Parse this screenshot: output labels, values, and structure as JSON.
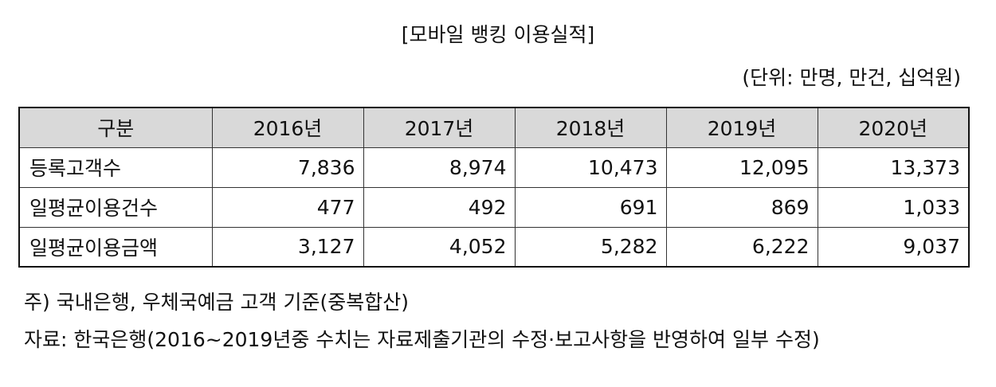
{
  "title": "[모바일 뱅킹 이용실적]",
  "unit": "(단위: 만명, 만건, 십억원)",
  "table": {
    "headers": [
      "구분",
      "2016년",
      "2017년",
      "2018년",
      "2019년",
      "2020년"
    ],
    "rows": [
      {
        "label": "등록고객수",
        "values": [
          "7,836",
          "8,974",
          "10,473",
          "12,095",
          "13,373"
        ]
      },
      {
        "label": "일평균이용건수",
        "values": [
          "477",
          "492",
          "691",
          "869",
          "1,033"
        ]
      },
      {
        "label": "일평균이용금액",
        "values": [
          "3,127",
          "4,052",
          "5,282",
          "6,222",
          "9,037"
        ]
      }
    ]
  },
  "notes": {
    "note": "주) 국내은행, 우체국예금 고객 기준(중복합산)",
    "source": "자료: 한국은행(2016~2019년중 수치는 자료제출기관의 수정·보고사항을 반영하여 일부 수정)"
  },
  "colors": {
    "header_bg": "#d9d9d9",
    "border": "#111111"
  }
}
